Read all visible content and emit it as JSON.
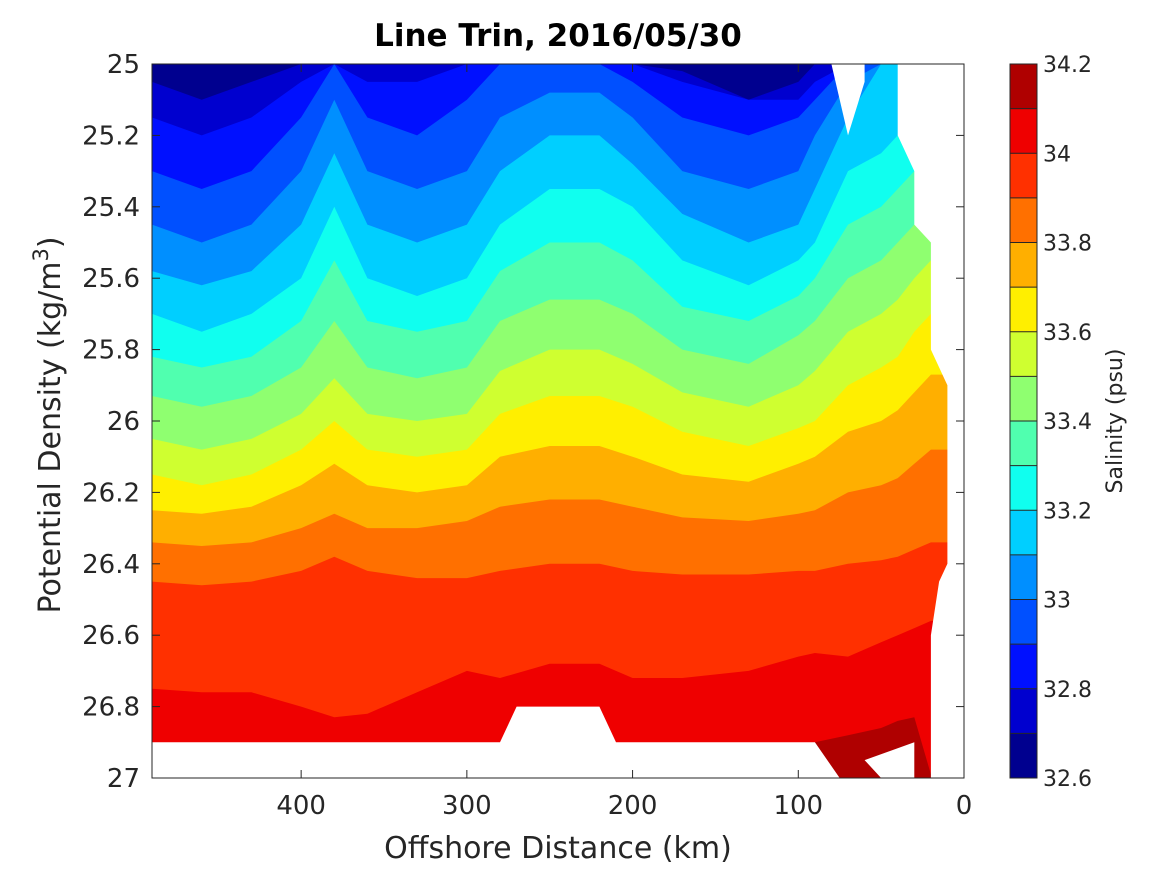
{
  "chart_data": {
    "type": "filled-contour",
    "title": "Line Trin, 2016/05/30",
    "xlabel": "Offshore Distance (km)",
    "ylabel": "Potential Density (kg/m³)",
    "xlim": [
      490,
      0
    ],
    "x_reversed": true,
    "ylim": [
      27.0,
      25.0
    ],
    "y_reversed": true,
    "x_ticks": [
      400,
      300,
      200,
      100,
      0
    ],
    "x_tick_labels": [
      "400",
      "300",
      "200",
      "100",
      "0"
    ],
    "y_ticks": [
      25.0,
      25.2,
      25.4,
      25.6,
      25.8,
      26.0,
      26.2,
      26.4,
      26.6,
      26.8,
      27.0
    ],
    "y_tick_labels": [
      "25",
      "25.2",
      "25.4",
      "25.6",
      "25.8",
      "26",
      "26.2",
      "26.4",
      "26.6",
      "26.8",
      "27"
    ],
    "colorbar": {
      "label": "Salinity (psu)",
      "range": [
        32.6,
        34.2
      ],
      "step": 0.1,
      "ticks": [
        32.6,
        32.8,
        33.0,
        33.2,
        33.4,
        33.6,
        33.8,
        34.0,
        34.2
      ],
      "tick_labels": [
        "32.6",
        "32.8",
        "33",
        "33.2",
        "33.4",
        "33.6",
        "33.8",
        "34",
        "34.2"
      ],
      "colors": [
        "#00008f",
        "#0000cf",
        "#0010ff",
        "#0050ff",
        "#008fff",
        "#00cfff",
        "#10ffef",
        "#50ffaf",
        "#8fff70",
        "#cfff30",
        "#ffef00",
        "#ffaf00",
        "#ff7000",
        "#ff3000",
        "#ef0000",
        "#af0000"
      ]
    },
    "contour_levels": [
      32.7,
      32.8,
      32.9,
      33.0,
      33.1,
      33.2,
      33.3,
      33.4,
      33.5,
      33.6,
      33.7,
      33.8,
      33.9,
      34.0,
      34.1
    ],
    "level_depths": {
      "x": [
        490,
        460,
        430,
        400,
        380,
        360,
        330,
        300,
        280,
        250,
        220,
        200,
        170,
        130,
        100,
        90,
        70,
        50,
        40,
        30,
        20,
        15
      ],
      "rows": [
        [
          25.05,
          25.1,
          25.05,
          25.0,
          25.0,
          25.0,
          25.0,
          25.0,
          25.0,
          25.0,
          25.0,
          25.0,
          25.02,
          25.1,
          25.05,
          25.0,
          25.0,
          25.0,
          25.0,
          25.0,
          25.0,
          25.0
        ],
        [
          25.15,
          25.2,
          25.15,
          25.05,
          25.0,
          25.05,
          25.05,
          25.0,
          25.0,
          25.0,
          25.0,
          25.0,
          25.05,
          25.1,
          25.1,
          25.05,
          25.0,
          25.0,
          25.0,
          25.0,
          25.0,
          25.0
        ],
        [
          25.3,
          25.35,
          25.3,
          25.15,
          25.0,
          25.15,
          25.2,
          25.1,
          25.0,
          25.0,
          25.0,
          25.05,
          25.15,
          25.2,
          25.15,
          25.1,
          25.0,
          25.0,
          25.0,
          25.0,
          25.0,
          25.0
        ],
        [
          25.45,
          25.5,
          25.45,
          25.3,
          25.1,
          25.3,
          25.35,
          25.3,
          25.15,
          25.08,
          25.08,
          25.15,
          25.3,
          25.35,
          25.3,
          25.2,
          25.05,
          25.0,
          25.0,
          25.0,
          25.0,
          25.0
        ],
        [
          25.58,
          25.62,
          25.58,
          25.45,
          25.25,
          25.45,
          25.5,
          25.45,
          25.3,
          25.2,
          25.2,
          25.28,
          25.42,
          25.5,
          25.45,
          25.35,
          25.15,
          25.0,
          25.0,
          25.0,
          25.0,
          25.0
        ],
        [
          25.7,
          25.75,
          25.7,
          25.6,
          25.4,
          25.6,
          25.65,
          25.6,
          25.45,
          25.35,
          25.35,
          25.4,
          25.55,
          25.62,
          25.55,
          25.5,
          25.3,
          25.25,
          25.2,
          25.1,
          25.0,
          25.0
        ],
        [
          25.82,
          25.85,
          25.82,
          25.72,
          25.55,
          25.72,
          25.75,
          25.72,
          25.58,
          25.5,
          25.5,
          25.55,
          25.68,
          25.72,
          25.65,
          25.6,
          25.45,
          25.4,
          25.35,
          25.3,
          25.25,
          25.25
        ],
        [
          25.93,
          25.96,
          25.93,
          25.85,
          25.72,
          25.85,
          25.88,
          25.85,
          25.72,
          25.66,
          25.66,
          25.7,
          25.8,
          25.84,
          25.76,
          25.72,
          25.6,
          25.55,
          25.5,
          25.45,
          25.4,
          25.4
        ],
        [
          26.05,
          26.08,
          26.05,
          25.98,
          25.88,
          25.98,
          26.0,
          25.98,
          25.86,
          25.8,
          25.8,
          25.84,
          25.92,
          25.96,
          25.9,
          25.86,
          25.75,
          25.7,
          25.66,
          25.6,
          25.55,
          25.55
        ],
        [
          26.15,
          26.18,
          26.15,
          26.08,
          26.0,
          26.08,
          26.1,
          26.08,
          25.98,
          25.93,
          25.93,
          25.96,
          26.03,
          26.07,
          26.02,
          26.0,
          25.9,
          25.85,
          25.82,
          25.75,
          25.7,
          25.7
        ],
        [
          26.25,
          26.26,
          26.24,
          26.18,
          26.12,
          26.18,
          26.2,
          26.18,
          26.1,
          26.07,
          26.07,
          26.1,
          26.15,
          26.17,
          26.12,
          26.1,
          26.03,
          26.0,
          25.97,
          25.92,
          25.87,
          25.87
        ],
        [
          26.34,
          26.35,
          26.34,
          26.3,
          26.26,
          26.3,
          26.3,
          26.28,
          26.24,
          26.22,
          26.22,
          26.24,
          26.27,
          26.28,
          26.26,
          26.25,
          26.2,
          26.18,
          26.16,
          26.12,
          26.08,
          26.08
        ],
        [
          26.45,
          26.46,
          26.45,
          26.42,
          26.38,
          26.42,
          26.44,
          26.44,
          26.42,
          26.4,
          26.4,
          26.42,
          26.43,
          26.43,
          26.42,
          26.42,
          26.4,
          26.39,
          26.38,
          26.36,
          26.34,
          26.34
        ],
        [
          26.75,
          26.76,
          26.76,
          26.8,
          26.83,
          26.82,
          26.76,
          26.7,
          26.72,
          26.68,
          26.68,
          26.72,
          26.72,
          26.7,
          26.66,
          26.65,
          26.66,
          26.62,
          26.6,
          26.58,
          26.56,
          26.56
        ],
        [
          26.99,
          26.99,
          26.99,
          26.99,
          26.99,
          26.99,
          26.99,
          26.99,
          26.99,
          26.99,
          26.99,
          26.99,
          26.99,
          26.99,
          26.99,
          26.9,
          26.88,
          26.86,
          26.84,
          26.83,
          26.99,
          26.99
        ]
      ]
    },
    "masked_regions": [
      {
        "note": "no data beyond deepest sample",
        "polygon": [
          [
            490,
            26.9
          ],
          [
            280,
            26.9
          ],
          [
            270,
            26.8
          ],
          [
            220,
            26.8
          ],
          [
            210,
            26.9
          ],
          [
            90,
            26.9
          ],
          [
            75,
            27.0
          ],
          [
            490,
            27.0
          ]
        ]
      },
      {
        "polygon": [
          [
            50,
            27.0
          ],
          [
            60,
            26.95
          ],
          [
            30,
            26.9
          ],
          [
            30,
            27.0
          ]
        ]
      },
      {
        "polygon": [
          [
            80,
            25.0
          ],
          [
            60,
            25.0
          ],
          [
            60,
            25.05
          ],
          [
            70,
            25.2
          ]
        ]
      },
      {
        "polygon": [
          [
            40,
            25.0
          ],
          [
            0,
            25.0
          ],
          [
            0,
            27.0
          ],
          [
            20,
            27.0
          ],
          [
            20,
            26.6
          ],
          [
            15,
            26.45
          ],
          [
            10,
            26.4
          ],
          [
            10,
            25.9
          ],
          [
            20,
            25.8
          ],
          [
            20,
            25.5
          ],
          [
            30,
            25.45
          ],
          [
            30,
            25.3
          ],
          [
            40,
            25.2
          ]
        ]
      }
    ]
  }
}
